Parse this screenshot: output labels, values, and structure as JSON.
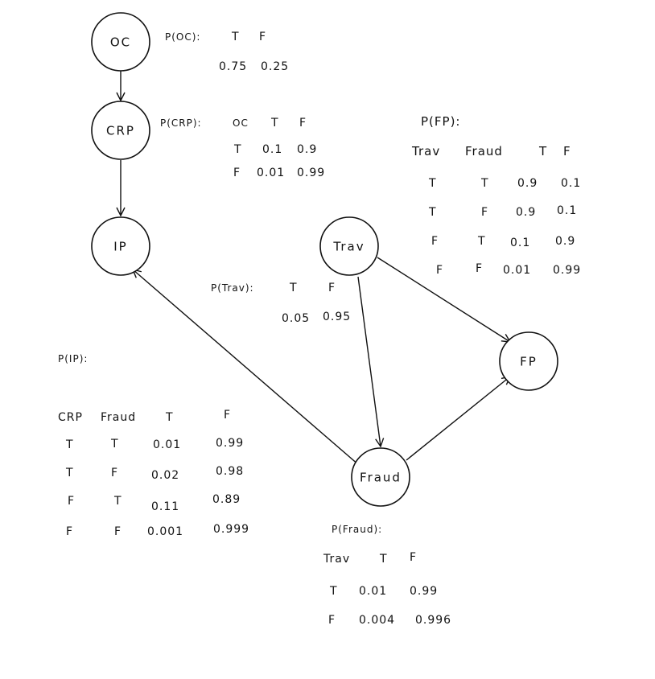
{
  "colors": {
    "ink": "#111111",
    "background": "#ffffff"
  },
  "nodes": {
    "oc": "OC",
    "crp": "CRP",
    "ip": "IP",
    "trav": "Trav",
    "fraud": "Fraud",
    "fp": "FP"
  },
  "cpt_oc": {
    "title": "P(OC):",
    "header_t": "T",
    "header_f": "F",
    "val_t": "0.75",
    "val_f": "0.25"
  },
  "cpt_crp": {
    "title": "P(CRP):",
    "parent": "OC",
    "header_t": "T",
    "header_f": "F",
    "rows": [
      {
        "parent": "T",
        "t": "0.1",
        "f": "0.9"
      },
      {
        "parent": "F",
        "t": "0.01",
        "f": "0.99"
      }
    ]
  },
  "cpt_trav": {
    "title": "P(Trav):",
    "header_t": "T",
    "header_f": "F",
    "val_t": "0.05",
    "val_f": "0.95"
  },
  "cpt_fp": {
    "title": "P(FP):",
    "col_trav": "Trav",
    "col_fraud": "Fraud",
    "header_t": "T",
    "header_f": "F",
    "rows": [
      {
        "trav": "T",
        "fraud": "T",
        "t": "0.9",
        "f": "0.1"
      },
      {
        "trav": "T",
        "fraud": "F",
        "t": "0.9",
        "f": "0.1"
      },
      {
        "trav": "F",
        "fraud": "T",
        "t": "0.1",
        "f": "0.9"
      },
      {
        "trav": "F",
        "fraud": "F",
        "t": "0.01",
        "f": "0.99"
      }
    ]
  },
  "cpt_ip": {
    "title": "P(IP):",
    "col_crp": "CRP",
    "col_fraud": "Fraud",
    "header_t": "T",
    "header_f": "F",
    "rows": [
      {
        "crp": "T",
        "fraud": "T",
        "t": "0.01",
        "f": "0.99"
      },
      {
        "crp": "T",
        "fraud": "F",
        "t": "0.02",
        "f": "0.98"
      },
      {
        "crp": "F",
        "fraud": "T",
        "t": "0.11",
        "f": "0.89"
      },
      {
        "crp": "F",
        "fraud": "F",
        "t": "0.001",
        "f": "0.999"
      }
    ]
  },
  "cpt_fraud": {
    "title": "P(Fraud):",
    "parent": "Trav",
    "header_t": "T",
    "header_f": "F",
    "rows": [
      {
        "parent": "T",
        "t": "0.01",
        "f": "0.99"
      },
      {
        "parent": "F",
        "t": "0.004",
        "f": "0.996"
      }
    ]
  }
}
